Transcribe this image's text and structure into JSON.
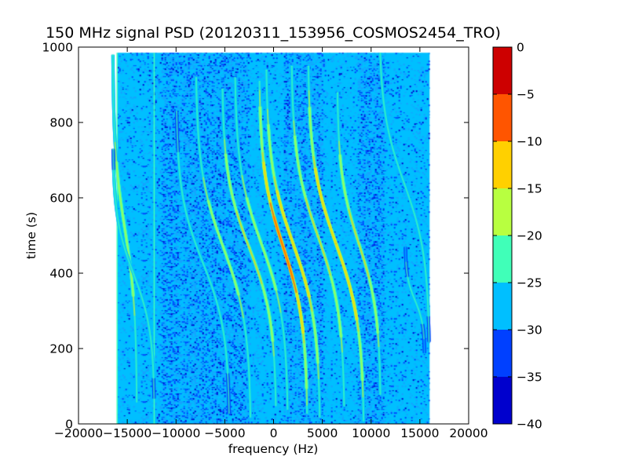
{
  "chart_data": {
    "type": "heatmap",
    "title": "150 MHz signal PSD (20120311_153956_COSMOS2454_TRO)",
    "xlabel": "frequency (Hz)",
    "ylabel": "time (s)",
    "xlim": [
      -20000,
      20000
    ],
    "ylim": [
      0,
      1000
    ],
    "x_ticks": [
      -20000,
      -15000,
      -10000,
      -5000,
      0,
      5000,
      10000,
      15000,
      20000
    ],
    "x_tick_labels": [
      "−20000",
      "−15000",
      "−10000",
      "−5000",
      "0",
      "5000",
      "10000",
      "15000",
      "20000"
    ],
    "y_ticks": [
      0,
      200,
      400,
      600,
      800,
      1000
    ],
    "y_tick_labels": [
      "0",
      "200",
      "400",
      "600",
      "800",
      "1000"
    ],
    "data_extent": {
      "x": [
        -16000,
        16000
      ],
      "y": [
        0,
        985
      ]
    },
    "colorbar": {
      "range": [
        -40,
        0
      ],
      "levels": [
        -40,
        -35,
        -30,
        -25,
        -20,
        -15,
        -10,
        -5,
        0
      ],
      "tick_labels": [
        "−40",
        "−35",
        "−30",
        "−25",
        "−20",
        "−15",
        "−10",
        "−5",
        "0"
      ],
      "colors": [
        "#0000cd",
        "#0040ff",
        "#00bfff",
        "#40ffb8",
        "#b8ff40",
        "#ffd000",
        "#ff5500",
        "#cd0000"
      ]
    },
    "background_level_db": -28,
    "noise_colors": [
      "#00bfff",
      "#1a9fff",
      "#0040ff",
      "#0000cd"
    ],
    "traces": [
      {
        "x_top": -16500,
        "x_bottom": -14000,
        "t_mid": 520,
        "span": 460,
        "peak_db": -17
      },
      {
        "x_top": -16500,
        "x_bottom": -12200,
        "t_mid": 400,
        "span": 330,
        "peak_db": -20
      },
      {
        "x_top": -10000,
        "x_bottom": -4500,
        "t_mid": 430,
        "span": 400,
        "peak_db": -21
      },
      {
        "x_top": -8000,
        "x_bottom": -2300,
        "t_mid": 470,
        "span": 450,
        "peak_db": -18
      },
      {
        "x_top": -5300,
        "x_bottom": 300,
        "t_mid": 470,
        "span": 420,
        "peak_db": -14
      },
      {
        "x_top": -4000,
        "x_bottom": 1500,
        "t_mid": 480,
        "span": 440,
        "peak_db": -18
      },
      {
        "x_top": -1500,
        "x_bottom": 3500,
        "t_mid": 470,
        "span": 440,
        "peak_db": -8
      },
      {
        "x_top": -800,
        "x_bottom": 4800,
        "t_mid": 480,
        "span": 460,
        "peak_db": -12
      },
      {
        "x_top": 1800,
        "x_bottom": 7300,
        "t_mid": 500,
        "span": 450,
        "peak_db": -14
      },
      {
        "x_top": 3500,
        "x_bottom": 9300,
        "t_mid": 480,
        "span": 470,
        "peak_db": -10
      },
      {
        "x_top": 6500,
        "x_bottom": 11000,
        "t_mid": 480,
        "span": 400,
        "peak_db": -14
      },
      {
        "x_top": 10800,
        "x_bottom": 16000,
        "t_mid": 640,
        "span": 420,
        "peak_db": -20
      },
      {
        "x_top": 13500,
        "x_bottom": 15500,
        "t_mid": 330,
        "span": 140,
        "peak_db": -23
      }
    ],
    "vertical_lines": [
      {
        "x": -16100,
        "level_db": -24
      },
      {
        "x": -12300,
        "level_db": -22
      },
      {
        "x": 5700,
        "level_db": -26
      },
      {
        "x": 7700,
        "level_db": -26
      }
    ],
    "dark_bands": [
      {
        "x0": -11500,
        "x1": -2500
      },
      {
        "x0": 1000,
        "x1": 5000
      },
      {
        "x0": 8500,
        "x1": 11500
      }
    ]
  }
}
